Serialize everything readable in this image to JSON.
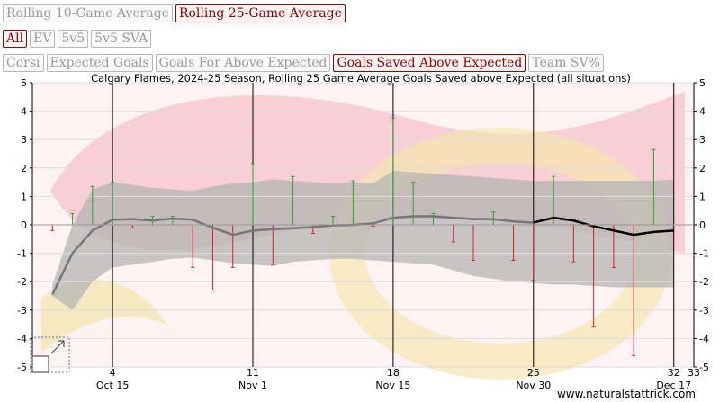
{
  "buttons": {
    "averages": [
      {
        "label": "Rolling 10-Game Average",
        "active": false
      },
      {
        "label": "Rolling 25-Game Average",
        "active": true
      }
    ],
    "situations": [
      {
        "label": "All",
        "active": true
      },
      {
        "label": "EV",
        "active": false
      },
      {
        "label": "5v5",
        "active": false
      },
      {
        "label": "5v5 SVA",
        "active": false
      }
    ],
    "metrics": [
      {
        "label": "Corsi",
        "active": false
      },
      {
        "label": "Expected Goals",
        "active": false
      },
      {
        "label": "Goals For Above Expected",
        "active": false
      },
      {
        "label": "Goals Saved Above Expected",
        "active": true
      },
      {
        "label": "Team SV%",
        "active": false
      }
    ]
  },
  "credit": "www.naturalstattrick.com",
  "chart_data": {
    "type": "line",
    "title": "Calgary Flames, 2024-25 Season, Rolling 25 Game Average Goals Saved above Expected (all situations)",
    "ylim": [
      -5,
      5
    ],
    "y_ticks": [
      5,
      4,
      3,
      2,
      1,
      0,
      -1,
      -2,
      -3,
      -4,
      -5
    ],
    "xlim": [
      0,
      33
    ],
    "x_ticks_top_labels": [
      {
        "x": 4,
        "label": "4"
      },
      {
        "x": 11,
        "label": "11"
      },
      {
        "x": 18,
        "label": "18"
      },
      {
        "x": 25,
        "label": "25"
      },
      {
        "x": 32,
        "label": "32"
      },
      {
        "x": 33,
        "label": "33"
      }
    ],
    "x_date_labels": [
      {
        "x": 4,
        "label": "Oct 15"
      },
      {
        "x": 11,
        "label": "Nov 1"
      },
      {
        "x": 18,
        "label": "Nov 15"
      },
      {
        "x": 25,
        "label": "Nov 30"
      },
      {
        "x": 32,
        "label": "Dec 17"
      }
    ],
    "game_values": [
      -0.2,
      0.4,
      1.35,
      1.5,
      -0.1,
      0.3,
      0.3,
      -1.5,
      -2.3,
      -1.5,
      2.15,
      -1.4,
      1.7,
      -0.3,
      0.3,
      1.55,
      -0.05,
      3.75,
      1.5,
      0.4,
      -0.6,
      -1.25,
      0.45,
      -1.25,
      -1.95,
      1.7,
      -1.3,
      -3.6,
      -1.5,
      -4.6,
      2.65,
      0
    ],
    "rolling_avg": [
      -2.45,
      -1.0,
      -0.2,
      0.18,
      0.2,
      0.15,
      0.22,
      0.18,
      -0.1,
      -0.35,
      -0.2,
      -0.15,
      -0.12,
      -0.08,
      -0.02,
      0.0,
      0.05,
      0.25,
      0.3,
      0.3,
      0.25,
      0.2,
      0.2,
      0.12,
      0.08,
      0.25,
      0.15,
      -0.05,
      -0.2,
      -0.35,
      -0.25,
      -0.2
    ],
    "highlight_from_x": 25,
    "band_upper": [
      -2.1,
      0.0,
      1.25,
      1.5,
      1.4,
      1.3,
      1.25,
      1.2,
      1.35,
      1.45,
      1.5,
      1.6,
      1.55,
      1.5,
      1.45,
      1.5,
      1.45,
      1.9,
      1.85,
      1.8,
      1.75,
      1.7,
      1.65,
      1.6,
      1.55,
      1.55,
      1.55,
      1.55,
      1.55,
      1.55,
      1.55,
      1.6
    ],
    "band_lower": [
      -2.5,
      -3.0,
      -2.0,
      -1.5,
      -1.4,
      -1.3,
      -1.2,
      -1.15,
      -1.25,
      -1.35,
      -1.4,
      -1.45,
      -1.3,
      -1.25,
      -1.2,
      -1.2,
      -1.25,
      -1.3,
      -1.35,
      -1.4,
      -1.6,
      -1.8,
      -1.9,
      -2.0,
      -2.05,
      -2.1,
      -2.1,
      -2.15,
      -2.2,
      -2.2,
      -2.2,
      -2.2
    ],
    "grid": true,
    "colors": {
      "positive_bar": "#28a828",
      "negative_bar": "#e02020",
      "rolling_line": "#777777",
      "rolling_line_recent": "#000000",
      "band": "#b4b4b4",
      "background_logo": "#f6c8ce"
    }
  }
}
